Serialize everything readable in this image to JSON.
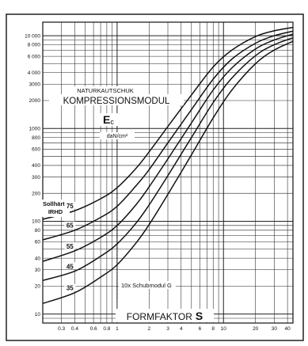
{
  "chart_data": {
    "type": "line",
    "title": "NATURKAUTSCHUK",
    "subtitle": "KOMPRESSIONSMODUL",
    "symbol_main": "E",
    "symbol_sub": "c",
    "unit": "daN/cm²",
    "xlabel_text": "FORMFAKTOR",
    "xlabel_symbol": "S",
    "x_scale": "log",
    "y_scale": "log",
    "xlim": [
      0.2,
      45
    ],
    "ylim": [
      8,
      14000
    ],
    "grid": true,
    "x_ticks": [
      {
        "v": 0.3,
        "label": "0.3"
      },
      {
        "v": 0.4,
        "label": "0.4"
      },
      {
        "v": 0.6,
        "label": "0.6"
      },
      {
        "v": 0.8,
        "label": "0.8"
      },
      {
        "v": 1,
        "label": "1"
      },
      {
        "v": 2,
        "label": "2"
      },
      {
        "v": 3,
        "label": "3"
      },
      {
        "v": 4,
        "label": "4"
      },
      {
        "v": 6,
        "label": "6"
      },
      {
        "v": 8,
        "label": "8"
      },
      {
        "v": 10,
        "label": "10"
      },
      {
        "v": 20,
        "label": "20"
      },
      {
        "v": 30,
        "label": "30"
      },
      {
        "v": 40,
        "label": "40"
      }
    ],
    "y_ticks": [
      {
        "v": 10,
        "label": "10"
      },
      {
        "v": 20,
        "label": "20"
      },
      {
        "v": 30,
        "label": "30"
      },
      {
        "v": 40,
        "label": "40"
      },
      {
        "v": 60,
        "label": "60"
      },
      {
        "v": 80,
        "label": "80"
      },
      {
        "v": 100,
        "label": "100"
      },
      {
        "v": 200,
        "label": "200"
      },
      {
        "v": 300,
        "label": "300"
      },
      {
        "v": 400,
        "label": "400"
      },
      {
        "v": 600,
        "label": "600"
      },
      {
        "v": 800,
        "label": "800"
      },
      {
        "v": 1000,
        "label": "1000"
      },
      {
        "v": 2000,
        "label": "2000"
      },
      {
        "v": 3000,
        "label": "3000"
      },
      {
        "v": 4000,
        "label": "4 000"
      },
      {
        "v": 6000,
        "label": "6 000"
      },
      {
        "v": 8000,
        "label": "8 000"
      },
      {
        "v": 10000,
        "label": "10 000"
      }
    ],
    "legend_title": "Sollhärte",
    "legend_subtitle": "IRHD",
    "annotation": "10x  Schubmodul  G",
    "annotation_x": 1,
    "series": [
      {
        "name": "75",
        "x": [
          0.2,
          0.4,
          0.7,
          1,
          1.5,
          2,
          3,
          5,
          8,
          12,
          20,
          30,
          45
        ],
        "y": [
          105,
          130,
          175,
          230,
          370,
          560,
          1050,
          2300,
          4600,
          7000,
          9800,
          11300,
          12300
        ]
      },
      {
        "name": "65",
        "x": [
          0.2,
          0.4,
          0.7,
          1,
          1.5,
          2,
          3,
          5,
          8,
          12,
          20,
          30,
          45
        ],
        "y": [
          63,
          80,
          110,
          145,
          240,
          360,
          700,
          1600,
          3400,
          5600,
          8300,
          10000,
          11200
        ]
      },
      {
        "name": "55",
        "x": [
          0.2,
          0.4,
          0.7,
          1,
          1.5,
          2,
          3,
          5,
          8,
          12,
          20,
          30,
          45
        ],
        "y": [
          37,
          48,
          67,
          90,
          150,
          235,
          470,
          1150,
          2600,
          4500,
          7200,
          9000,
          10400
        ]
      },
      {
        "name": "45",
        "x": [
          0.2,
          0.4,
          0.7,
          1,
          1.5,
          2,
          3,
          5,
          8,
          12,
          20,
          30,
          45
        ],
        "y": [
          23,
          29,
          42,
          57,
          95,
          150,
          310,
          800,
          1900,
          3500,
          6100,
          8000,
          9500
        ]
      },
      {
        "name": "35",
        "x": [
          0.2,
          0.4,
          0.7,
          1,
          1.5,
          2,
          3,
          5,
          8,
          12,
          20,
          30,
          45
        ],
        "y": [
          13,
          17,
          25,
          34,
          58,
          92,
          195,
          520,
          1300,
          2600,
          5000,
          7000,
          8700
        ]
      }
    ]
  }
}
